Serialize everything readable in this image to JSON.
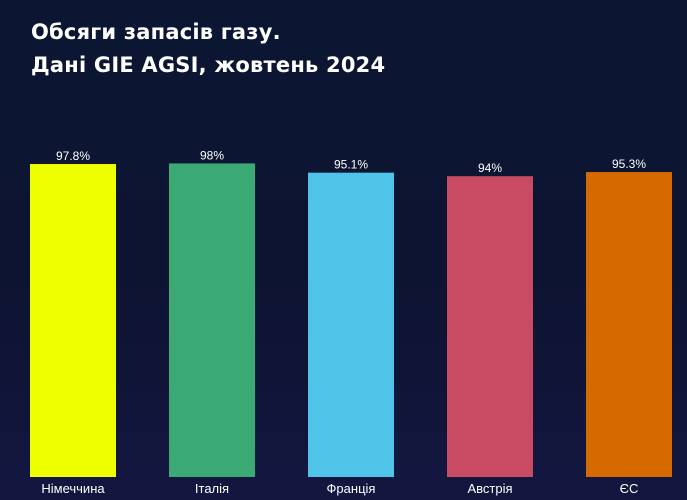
{
  "header": {
    "title_line1": "Обсяги запасів газу.",
    "title_line2": "Дані GIE AGSI, жовтень 2024"
  },
  "chart_data": {
    "type": "bar",
    "title": "Обсяги запасів газу. Дані GIE AGSI, жовтень 2024",
    "categories": [
      "Німеччина",
      "Італія",
      "Франція",
      "Австрія",
      "ЄС"
    ],
    "values": [
      97.8,
      98,
      95.1,
      94,
      95.3
    ],
    "value_labels": [
      "97.8%",
      "98%",
      "95.1%",
      "94%",
      "95.3%"
    ],
    "colors": [
      "#eeff00",
      "#3aa974",
      "#4fc3e8",
      "#c94a63",
      "#d46a00"
    ],
    "ylim": [
      0,
      100
    ],
    "grid": false,
    "legend": "none",
    "background": "#0c1533"
  }
}
